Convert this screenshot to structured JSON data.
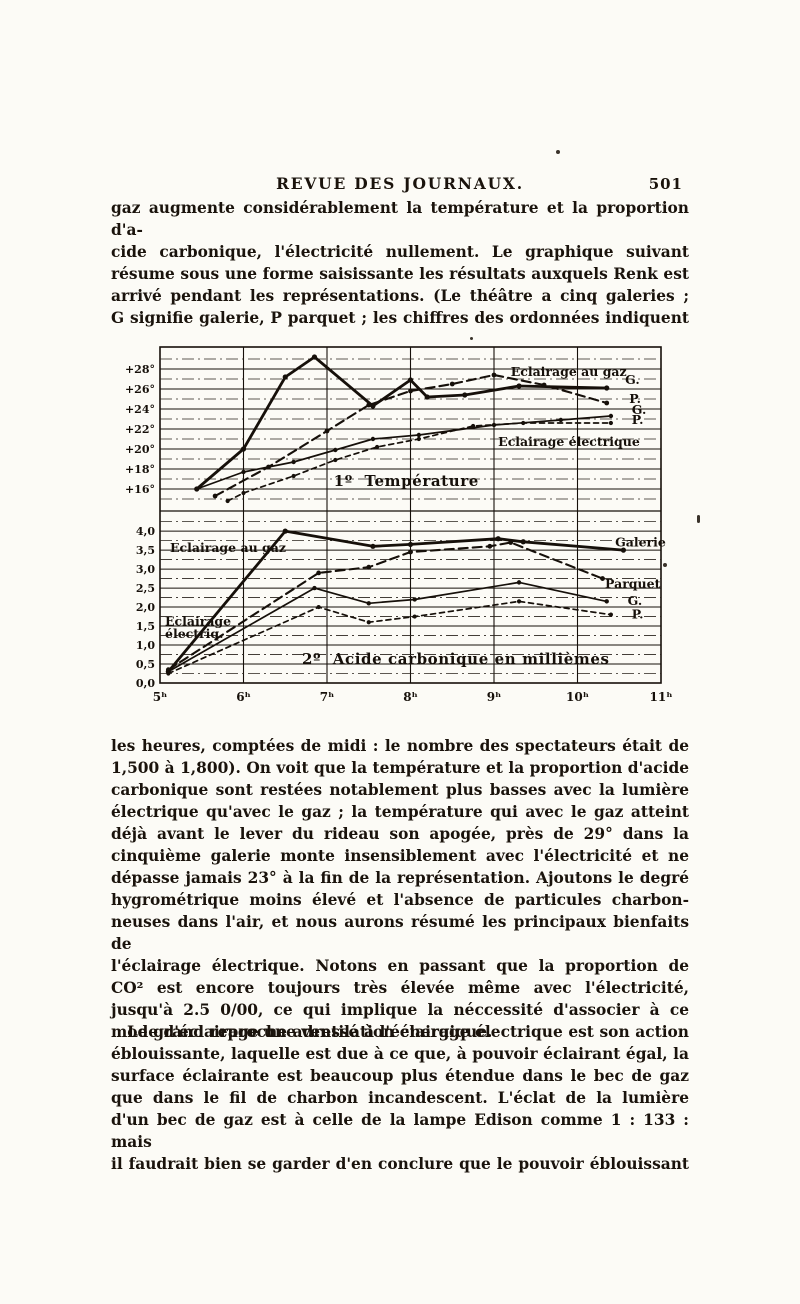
{
  "page": {
    "header": {
      "title": "REVUE DES JOURNAUX.",
      "page_number": "501"
    },
    "paragraphs": [
      {
        "indent": false,
        "end": false,
        "lines": [
          "gaz augmente considérablement la température et la proportion d'a-",
          "cide carbonique, l'électricité nullement. Le graphique suivant",
          "résume sous une forme saisissante les résultats auxquels Renk est",
          "arrivé pendant les représentations. (Le théâtre a cinq galeries ;",
          "G signifie galerie, P parquet ; les chiffres des ordonnées indiquent"
        ]
      },
      {
        "indent": false,
        "end": true,
        "lines": [
          "les heures, comptées de midi : le nombre des spectateurs était de",
          "1,500 à 1,800). On voit que la température et la proportion d'acide",
          "carbonique sont restées notablement plus basses avec la lumière",
          "électrique qu'avec le gaz ; la température qui avec le gaz atteint",
          "déjà avant le lever du rideau son apogée, près de 29° dans la",
          "cinquième galerie monte insensiblement avec l'électricité et ne",
          "dépasse jamais 23° à la fin de la représentation. Ajoutons le degré",
          "hygrométrique moins élevé et l'absence de particules charbon-",
          "neuses dans l'air, et nous aurons résumé les principaux bienfaits de",
          "l'éclairage électrique. Notons en passant que la proportion de",
          "CO² est encore toujours très élevée même avec l'électricité,",
          "jusqu'à 2.5 0/00, ce qui implique la néccessité d'associer à ce",
          "mode d'éclairage une ventilation énergique."
        ]
      },
      {
        "indent": true,
        "end": false,
        "lines": [
          "Le grand reproche adressé à l'éclairage électrique est son action",
          "éblouissante, laquelle est due à ce que, à pouvoir éclairant égal, la",
          "surface éclairante est beaucoup plus étendue dans le bec de gaz",
          "que dans le fil de charbon incandescent. L'éclat de la lumière",
          "d'un bec de gaz est à celle de la lampe Edison comme 1 : 133 : mais",
          "il faudrait bien se garder d'en conclure que le pouvoir éblouissant"
        ]
      }
    ]
  },
  "chart_data": [
    {
      "type": "line",
      "title": "1º Température",
      "y_ticks": [
        "+28°",
        "+26°",
        "+24°",
        "+22°",
        "+20°",
        "+18°",
        "+16°"
      ],
      "y_tick_values": [
        28,
        26,
        24,
        22,
        20,
        18,
        16
      ],
      "y_minor": [
        29,
        27,
        25,
        23,
        21,
        19,
        17,
        15
      ],
      "ylim": [
        13.8,
        30.2
      ],
      "series": [
        {
          "name": "gaz-galerie",
          "style": "solid-bold",
          "points": [
            [
              5.44,
              16
            ],
            [
              6.0,
              20
            ],
            [
              6.5,
              27.2
            ],
            [
              6.85,
              29.2
            ],
            [
              7.55,
              24.3
            ],
            [
              8.0,
              26.9
            ],
            [
              8.2,
              25.2
            ],
            [
              8.65,
              25.4
            ],
            [
              9.3,
              26.3
            ],
            [
              10.35,
              26.1
            ]
          ]
        },
        {
          "name": "gaz-parquet",
          "style": "dashed",
          "points": [
            [
              5.66,
              15.3
            ],
            [
              6.3,
              18.2
            ],
            [
              7.0,
              21.8
            ],
            [
              7.5,
              24.4
            ],
            [
              8.0,
              25.8
            ],
            [
              8.5,
              26.5
            ],
            [
              9.0,
              27.4
            ],
            [
              9.6,
              26.4
            ],
            [
              10.35,
              24.6
            ]
          ]
        },
        {
          "name": "electrique-galerie",
          "style": "solid",
          "points": [
            [
              5.44,
              16
            ],
            [
              6.0,
              17.7
            ],
            [
              6.6,
              18.7
            ],
            [
              7.1,
              19.9
            ],
            [
              7.55,
              21.0
            ],
            [
              8.1,
              21.4
            ],
            [
              9.0,
              22.4
            ],
            [
              9.8,
              22.9
            ],
            [
              10.4,
              23.3
            ]
          ]
        },
        {
          "name": "electrique-parquet",
          "style": "dashed-fine",
          "points": [
            [
              5.81,
              14.8
            ],
            [
              6.0,
              15.6
            ],
            [
              6.6,
              17.3
            ],
            [
              7.1,
              18.9
            ],
            [
              7.6,
              20.2
            ],
            [
              8.1,
              21.0
            ],
            [
              8.75,
              22.3
            ],
            [
              9.35,
              22.6
            ],
            [
              10.4,
              22.6
            ]
          ]
        }
      ],
      "annotations": [
        {
          "kind": "label",
          "text": "Eclairage au gaz",
          "x": 9.2,
          "y": 27.3
        },
        {
          "kind": "label",
          "text": "G.",
          "x": 10.57,
          "y": 26.5
        },
        {
          "kind": "label",
          "text": "P.",
          "x": 10.62,
          "y": 24.6
        },
        {
          "kind": "label",
          "text": "G.",
          "x": 10.65,
          "y": 23.5
        },
        {
          "kind": "label",
          "text": "P.",
          "x": 10.65,
          "y": 22.5
        },
        {
          "kind": "label",
          "text": "Eclairage électrique",
          "x": 9.05,
          "y": 20.3
        },
        {
          "kind": "title",
          "text": "1º  Température",
          "x": 7.08,
          "y": 16.3
        }
      ]
    },
    {
      "type": "line",
      "title": "2º Acide carbonique en millièmes",
      "y_ticks": [
        "4,0",
        "3,5",
        "3,0",
        "2,5",
        "2,0",
        "1,5",
        "1,0",
        "0,5",
        "0,0"
      ],
      "y_tick_values": [
        4.0,
        3.5,
        3.0,
        2.5,
        2.0,
        1.5,
        1.0,
        0.5,
        0.0
      ],
      "y_minor": [
        4.25,
        3.75,
        3.25,
        2.75,
        2.25,
        1.75,
        1.25,
        0.75,
        0.25
      ],
      "ylim": [
        0,
        4.53
      ],
      "x_ticks": [
        "5ʰ",
        "6ʰ",
        "7ʰ",
        "8ʰ",
        "9ʰ",
        "10ʰ",
        "11ʰ"
      ],
      "x_tick_values": [
        5,
        6,
        7,
        8,
        9,
        10,
        11
      ],
      "series": [
        {
          "name": "gaz-galerie",
          "style": "solid-bold",
          "points": [
            [
              5.1,
              0.3
            ],
            [
              6.5,
              4.0
            ],
            [
              7.55,
              3.6
            ],
            [
              8.0,
              3.65
            ],
            [
              9.05,
              3.8
            ],
            [
              9.35,
              3.72
            ],
            [
              10.55,
              3.5
            ]
          ]
        },
        {
          "name": "gaz-parquet",
          "style": "dashed",
          "points": [
            [
              5.1,
              0.35
            ],
            [
              6.9,
              2.9
            ],
            [
              7.5,
              3.05
            ],
            [
              8.0,
              3.45
            ],
            [
              8.95,
              3.6
            ],
            [
              9.2,
              3.7
            ],
            [
              10.3,
              2.75
            ]
          ]
        },
        {
          "name": "electrique-galerie",
          "style": "solid",
          "points": [
            [
              5.1,
              0.3
            ],
            [
              6.85,
              2.5
            ],
            [
              7.5,
              2.1
            ],
            [
              8.05,
              2.2
            ],
            [
              9.3,
              2.65
            ],
            [
              10.35,
              2.15
            ]
          ]
        },
        {
          "name": "electrique-parquet",
          "style": "dashed-fine",
          "points": [
            [
              5.1,
              0.25
            ],
            [
              6.9,
              2.0
            ],
            [
              7.5,
              1.6
            ],
            [
              8.05,
              1.75
            ],
            [
              9.3,
              2.15
            ],
            [
              10.4,
              1.8
            ]
          ]
        }
      ],
      "annotations": [
        {
          "kind": "label",
          "text": "Eclairage au gaz",
          "x": 5.12,
          "y": 3.45
        },
        {
          "kind": "label",
          "text": "Eclairage",
          "x": 5.06,
          "y": 1.52
        },
        {
          "kind": "label",
          "text": "électriq.",
          "x": 5.06,
          "y": 1.18
        },
        {
          "kind": "title",
          "text": "2º  Acide carbonique en millièmes",
          "x": 6.7,
          "y": 0.5
        },
        {
          "kind": "label",
          "text": "Galerie",
          "x": 10.45,
          "y": 3.6
        },
        {
          "kind": "label",
          "text": "Parquet",
          "x": 10.33,
          "y": 2.5
        },
        {
          "kind": "label",
          "text": "G.",
          "x": 10.6,
          "y": 2.05
        },
        {
          "kind": "label",
          "text": "P.",
          "x": 10.65,
          "y": 1.7
        }
      ]
    }
  ]
}
